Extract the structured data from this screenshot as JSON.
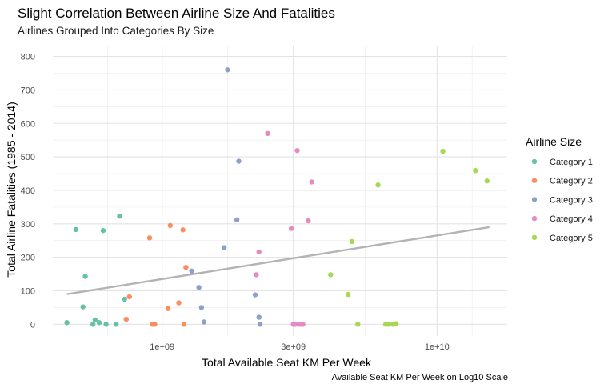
{
  "chart_data": {
    "type": "scatter",
    "title": "Slight Correlation Between Airline Size And Fatalities",
    "subtitle": "Airlines Grouped Into Categories By Size",
    "xlabel": "Total Available Seat KM Per Week",
    "ylabel": "Total Airline Fatalities (1985 - 2014)",
    "caption": "Available Seat KM Per Week on Log10 Scale",
    "x_scale": "log10",
    "xlim": [
      400000000,
      18000000000
    ],
    "ylim": [
      -35,
      830
    ],
    "x_ticks": [
      {
        "value": 1000000000,
        "label": "1e+09"
      },
      {
        "value": 3000000000,
        "label": "3e+09"
      },
      {
        "value": 10000000000,
        "label": "1e+10"
      }
    ],
    "y_ticks": [
      {
        "value": 0,
        "label": "0"
      },
      {
        "value": 100,
        "label": "100"
      },
      {
        "value": 200,
        "label": "200"
      },
      {
        "value": 300,
        "label": "300"
      },
      {
        "value": 400,
        "label": "400"
      },
      {
        "value": 500,
        "label": "500"
      },
      {
        "value": 600,
        "label": "600"
      },
      {
        "value": 700,
        "label": "700"
      },
      {
        "value": 800,
        "label": "800"
      }
    ],
    "grid": true,
    "legend_title": "Airline Size",
    "legend_position": "right",
    "trend_line": {
      "x": [
        450000000,
        15500000000
      ],
      "y": [
        90,
        290
      ],
      "color": "#b3b3b3"
    },
    "series": [
      {
        "name": "Category 1",
        "color": "#66c2a5",
        "points": [
          {
            "x": 450000000,
            "y": 5
          },
          {
            "x": 485000000,
            "y": 283
          },
          {
            "x": 515000000,
            "y": 52
          },
          {
            "x": 525000000,
            "y": 143
          },
          {
            "x": 560000000,
            "y": 0
          },
          {
            "x": 570000000,
            "y": 13
          },
          {
            "x": 590000000,
            "y": 5
          },
          {
            "x": 610000000,
            "y": 280
          },
          {
            "x": 625000000,
            "y": 0
          },
          {
            "x": 680000000,
            "y": 0
          },
          {
            "x": 700000000,
            "y": 323
          },
          {
            "x": 730000000,
            "y": 75
          }
        ]
      },
      {
        "name": "Category 2",
        "color": "#fc8d62",
        "points": [
          {
            "x": 740000000,
            "y": 15
          },
          {
            "x": 760000000,
            "y": 82
          },
          {
            "x": 900000000,
            "y": 258
          },
          {
            "x": 920000000,
            "y": 0
          },
          {
            "x": 940000000,
            "y": 0
          },
          {
            "x": 1050000000,
            "y": 47
          },
          {
            "x": 1070000000,
            "y": 295
          },
          {
            "x": 1150000000,
            "y": 64
          },
          {
            "x": 1190000000,
            "y": 282
          },
          {
            "x": 1200000000,
            "y": 0
          },
          {
            "x": 1220000000,
            "y": 170
          }
        ]
      },
      {
        "name": "Category 3",
        "color": "#8da0cb",
        "points": [
          {
            "x": 1280000000,
            "y": 159
          },
          {
            "x": 1360000000,
            "y": 110
          },
          {
            "x": 1390000000,
            "y": 50
          },
          {
            "x": 1420000000,
            "y": 7
          },
          {
            "x": 1680000000,
            "y": 229
          },
          {
            "x": 1730000000,
            "y": 760
          },
          {
            "x": 1870000000,
            "y": 312
          },
          {
            "x": 1900000000,
            "y": 487
          },
          {
            "x": 2180000000,
            "y": 88
          },
          {
            "x": 2250000000,
            "y": 21
          },
          {
            "x": 2270000000,
            "y": 0
          }
        ]
      },
      {
        "name": "Category 4",
        "color": "#e78ac3",
        "points": [
          {
            "x": 2200000000,
            "y": 148
          },
          {
            "x": 2250000000,
            "y": 216
          },
          {
            "x": 2420000000,
            "y": 570
          },
          {
            "x": 2950000000,
            "y": 286
          },
          {
            "x": 3000000000,
            "y": 0
          },
          {
            "x": 3050000000,
            "y": 0
          },
          {
            "x": 3100000000,
            "y": 519
          },
          {
            "x": 3150000000,
            "y": 0
          },
          {
            "x": 3200000000,
            "y": 0
          },
          {
            "x": 3250000000,
            "y": 0
          },
          {
            "x": 3400000000,
            "y": 309
          },
          {
            "x": 3500000000,
            "y": 425
          }
        ]
      },
      {
        "name": "Category 5",
        "color": "#a6d854",
        "points": [
          {
            "x": 4100000000,
            "y": 148
          },
          {
            "x": 4750000000,
            "y": 89
          },
          {
            "x": 4900000000,
            "y": 247
          },
          {
            "x": 5150000000,
            "y": 0
          },
          {
            "x": 6100000000,
            "y": 416
          },
          {
            "x": 6500000000,
            "y": 0
          },
          {
            "x": 6650000000,
            "y": 0
          },
          {
            "x": 6900000000,
            "y": 0
          },
          {
            "x": 7100000000,
            "y": 2
          },
          {
            "x": 10500000000,
            "y": 517
          },
          {
            "x": 13800000000,
            "y": 459
          },
          {
            "x": 15200000000,
            "y": 428
          }
        ]
      }
    ]
  }
}
